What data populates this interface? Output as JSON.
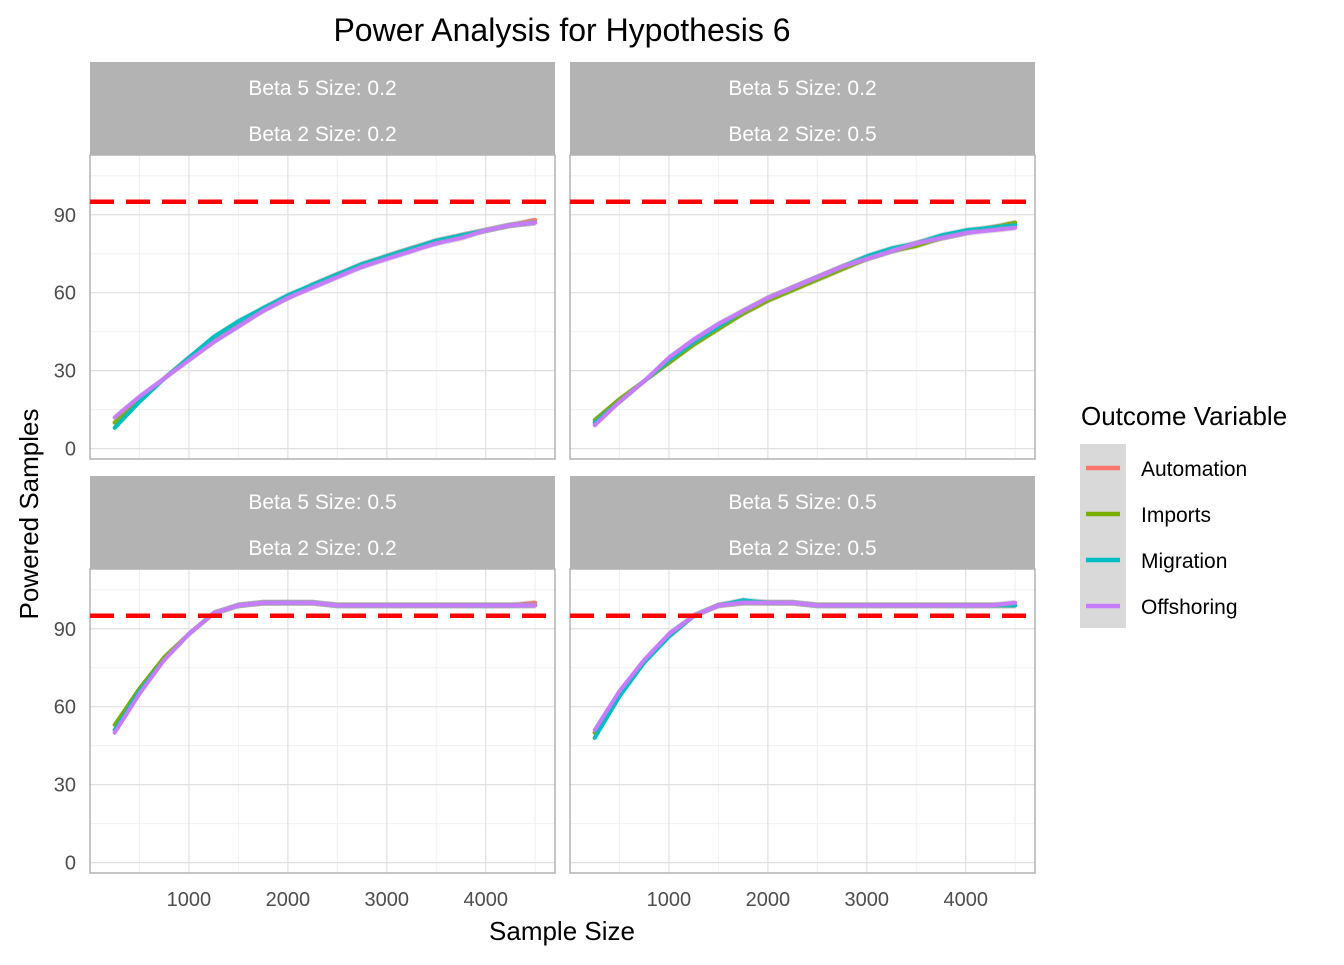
{
  "title": "Power Analysis for Hypothesis 6",
  "xlabel": "Sample Size",
  "ylabel": "Powered Samples",
  "legend": {
    "title": "Outcome Variable",
    "position": "right",
    "items": [
      {
        "name": "Automation",
        "color": "#F8766D"
      },
      {
        "name": "Imports",
        "color": "#7CAE00"
      },
      {
        "name": "Migration",
        "color": "#00BFC4"
      },
      {
        "name": "Offshoring",
        "color": "#C77CFF"
      }
    ]
  },
  "chart_data": {
    "type": "line",
    "title": "Power Analysis for Hypothesis 6",
    "xlabel": "Sample Size",
    "ylabel": "Powered Samples",
    "xlim": [
      0,
      4700
    ],
    "ylim": [
      -4,
      113
    ],
    "x_ticks": [
      1000,
      2000,
      3000,
      4000
    ],
    "y_ticks": [
      0,
      30,
      60,
      90
    ],
    "grid": true,
    "legend_position": "right",
    "threshold": {
      "y": 95,
      "color": "#FF0000",
      "style": "dashed"
    },
    "x": [
      250,
      500,
      750,
      1000,
      1250,
      1500,
      1750,
      2000,
      2250,
      2500,
      2750,
      3000,
      3250,
      3500,
      3750,
      4000,
      4250,
      4500
    ],
    "facets": [
      {
        "strip_top": "Beta 5 Size: 0.2",
        "strip_bottom": "Beta 2 Size: 0.2",
        "series": [
          {
            "name": "Automation",
            "values": [
              10,
              19,
              27,
              35,
              42,
              48,
              53,
              58,
              63,
              67,
              71,
              74,
              77,
              80,
              82,
              84,
              86,
              88
            ]
          },
          {
            "name": "Imports",
            "values": [
              10,
              19,
              27,
              35,
              42,
              48,
              54,
              58,
              63,
              67,
              70,
              74,
              77,
              79,
              82,
              84,
              86,
              87
            ]
          },
          {
            "name": "Migration",
            "values": [
              8,
              18,
              27,
              35,
              43,
              49,
              54,
              59,
              63,
              67,
              71,
              74,
              77,
              80,
              82,
              84,
              86,
              87
            ]
          },
          {
            "name": "Offshoring",
            "values": [
              12,
              20,
              27,
              34,
              41,
              47,
              53,
              58,
              62,
              66,
              70,
              73,
              76,
              79,
              81,
              84,
              86,
              87
            ]
          }
        ]
      },
      {
        "strip_top": "Beta 5 Size: 0.2",
        "strip_bottom": "Beta 2 Size: 0.5",
        "series": [
          {
            "name": "Automation",
            "values": [
              10,
              18,
              26,
              34,
              41,
              47,
              52,
              57,
              62,
              66,
              70,
              73,
              76,
              79,
              81,
              83,
              85,
              86
            ]
          },
          {
            "name": "Imports",
            "values": [
              11,
              19,
              26,
              33,
              40,
              46,
              52,
              57,
              61,
              65,
              69,
              73,
              76,
              78,
              81,
              83,
              85,
              87
            ]
          },
          {
            "name": "Migration",
            "values": [
              10,
              18,
              26,
              34,
              41,
              47,
              53,
              58,
              62,
              66,
              70,
              74,
              77,
              79,
              82,
              84,
              85,
              86
            ]
          },
          {
            "name": "Offshoring",
            "values": [
              9,
              18,
              26,
              35,
              42,
              48,
              53,
              58,
              62,
              66,
              70,
              73,
              76,
              79,
              81,
              83,
              84,
              85
            ]
          }
        ]
      },
      {
        "strip_top": "Beta 5 Size: 0.5",
        "strip_bottom": "Beta 2 Size: 0.2",
        "series": [
          {
            "name": "Automation",
            "values": [
              51,
              66,
              78,
              88,
              96,
              99,
              100,
              100,
              100,
              99,
              99,
              99,
              99,
              99,
              99,
              99,
              99,
              100
            ]
          },
          {
            "name": "Imports",
            "values": [
              53,
              67,
              79,
              88,
              96,
              99,
              100,
              100,
              100,
              99,
              99,
              99,
              99,
              99,
              99,
              99,
              99,
              99
            ]
          },
          {
            "name": "Migration",
            "values": [
              51,
              66,
              78,
              88,
              96,
              99,
              100,
              100,
              100,
              99,
              99,
              99,
              99,
              99,
              99,
              99,
              99,
              99
            ]
          },
          {
            "name": "Offshoring",
            "values": [
              50,
              65,
              78,
              88,
              96,
              99,
              100,
              100,
              100,
              99,
              99,
              99,
              99,
              99,
              99,
              99,
              99,
              99
            ]
          }
        ]
      },
      {
        "strip_top": "Beta 5 Size: 0.5",
        "strip_bottom": "Beta 2 Size: 0.5",
        "series": [
          {
            "name": "Automation",
            "values": [
              50,
              65,
              77,
              87,
              95,
              99,
              100,
              100,
              100,
              99,
              99,
              99,
              99,
              99,
              99,
              99,
              99,
              99
            ]
          },
          {
            "name": "Imports",
            "values": [
              50,
              65,
              77,
              88,
              95,
              99,
              100,
              100,
              100,
              99,
              99,
              99,
              99,
              99,
              99,
              99,
              99,
              99
            ]
          },
          {
            "name": "Migration",
            "values": [
              48,
              64,
              77,
              87,
              95,
              99,
              101,
              100,
              100,
              99,
              99,
              99,
              99,
              99,
              99,
              99,
              99,
              99
            ]
          },
          {
            "name": "Offshoring",
            "values": [
              51,
              66,
              78,
              88,
              95,
              99,
              100,
              100,
              100,
              99,
              99,
              99,
              99,
              99,
              99,
              99,
              99,
              100
            ]
          }
        ]
      }
    ]
  }
}
